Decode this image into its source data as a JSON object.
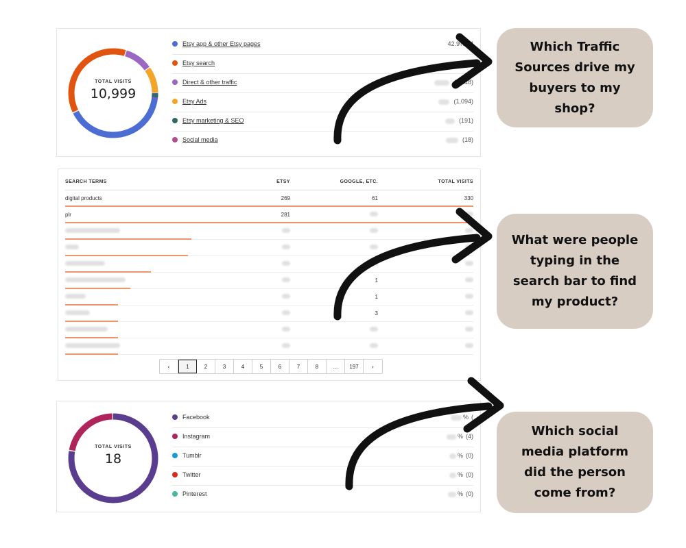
{
  "traffic_sources": {
    "total_label": "TOTAL VISITS",
    "total_value": "10,999",
    "items": [
      {
        "name": "Etsy app & other Etsy pages",
        "stat": "42.9%",
        "count_partial": "(4",
        "color": "#4c6ed2",
        "share": 0.429
      },
      {
        "name": "Etsy search",
        "stat": "",
        "count_partial": "(",
        "color": "#e1540f",
        "share": 0.37
      },
      {
        "name": "Direct & other traffic",
        "stat": "",
        "count_partial": "(1,148)",
        "color": "#9b67c2",
        "share": 0.104
      },
      {
        "name": "Etsy Ads",
        "stat": "",
        "count_partial": "(1,094)",
        "color": "#f3a52b",
        "share": 0.099
      },
      {
        "name": "Etsy marketing & SEO",
        "stat": "",
        "count_partial": "(191)",
        "color": "#2f6a68",
        "share": 0.017
      },
      {
        "name": "Social media",
        "stat": "",
        "count_partial": "(18)",
        "color": "#b34b93",
        "share": 0.0016
      }
    ]
  },
  "search_terms": {
    "headers": {
      "term": "SEARCH TERMS",
      "etsy": "ETSY",
      "google": "GOOGLE, ETC.",
      "total": "TOTAL VISITS"
    },
    "rows": [
      {
        "term": "digital products",
        "etsy": "269",
        "google": "61",
        "total": "330",
        "bar": 1.0
      },
      {
        "term": "plr",
        "etsy": "281",
        "google": "",
        "total": "",
        "bar": 1.0
      },
      {
        "term": "",
        "etsy": "",
        "google": "",
        "total": "",
        "bar": 0.31
      },
      {
        "term": "",
        "etsy": "",
        "google": "",
        "total": "",
        "bar": 0.3
      },
      {
        "term": "",
        "etsy": "",
        "google": "",
        "total": "",
        "bar": 0.21
      },
      {
        "term": "",
        "etsy": "",
        "google": "1",
        "total": "",
        "bar": 0.16
      },
      {
        "term": "",
        "etsy": "",
        "google": "1",
        "total": "",
        "bar": 0.13
      },
      {
        "term": "",
        "etsy": "",
        "google": "3",
        "total": "",
        "bar": 0.13
      },
      {
        "term": "",
        "etsy": "",
        "google": "",
        "total": "",
        "bar": 0.13
      },
      {
        "term": "",
        "etsy": "",
        "google": "",
        "total": "",
        "bar": 0.13
      }
    ],
    "pagination": {
      "prev": "‹",
      "pages": [
        "1",
        "2",
        "3",
        "4",
        "5",
        "6",
        "7",
        "8",
        "...",
        "197"
      ],
      "next": "›",
      "current": "1"
    }
  },
  "social": {
    "total_label": "TOTAL VISITS",
    "total_value": "18",
    "items": [
      {
        "name": "Facebook",
        "stat": "%",
        "count_partial": "(",
        "color": "#5a3d8e",
        "share": 0.78
      },
      {
        "name": "Instagram",
        "stat": "%",
        "count_partial": "(4)",
        "color": "#b0245c",
        "share": 0.22
      },
      {
        "name": "Tumblr",
        "stat": "%",
        "count_partial": "(0)",
        "color": "#1b9ad6",
        "share": 0
      },
      {
        "name": "Twitter",
        "stat": "%",
        "count_partial": "(0)",
        "color": "#d92a1c",
        "share": 0
      },
      {
        "name": "Pinterest",
        "stat": "%",
        "count_partial": "(0)",
        "color": "#4fb5a3",
        "share": 0
      }
    ]
  },
  "callouts": {
    "traffic": "Which Traffic Sources drive my buyers to my shop?",
    "search": "What were people typing in the search bar to find my product?",
    "social": "Which social media platform did the person come from?"
  }
}
